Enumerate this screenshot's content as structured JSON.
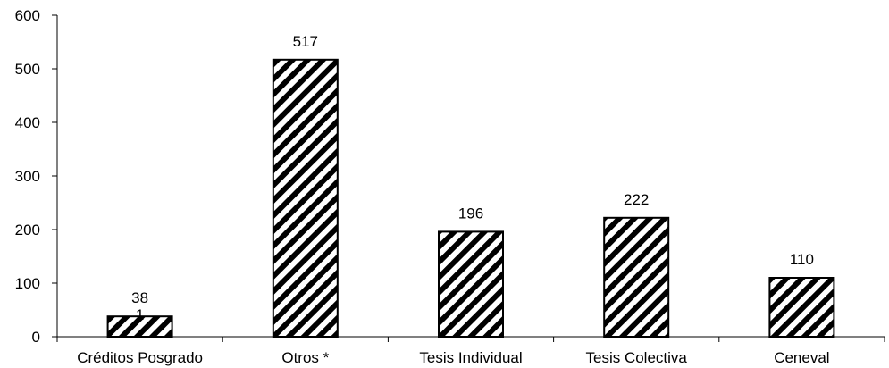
{
  "chart_data": {
    "type": "bar",
    "title": "",
    "xlabel": "",
    "ylabel": "",
    "categories": [
      "Créditos Posgrado",
      "Otros *",
      "Tesis Individual",
      "Tesis Colectiva",
      "Ceneval"
    ],
    "values": [
      38,
      517,
      196,
      222,
      110
    ],
    "data_labels": [
      "38",
      "517",
      "196",
      "222",
      "110"
    ],
    "annotations": [
      "1"
    ],
    "ylim": [
      0,
      600
    ],
    "yticks": [
      0,
      100,
      200,
      300,
      400,
      500,
      600
    ],
    "ytick_labels": [
      "0",
      "100",
      "200",
      "300",
      "400",
      "500",
      "600"
    ],
    "grid": false,
    "legend": "none",
    "bar_fill": "hatched diagonal black-and-white",
    "colors": {
      "bar_stroke": "#000000",
      "hatch": "#000000",
      "background": "#ffffff"
    }
  }
}
